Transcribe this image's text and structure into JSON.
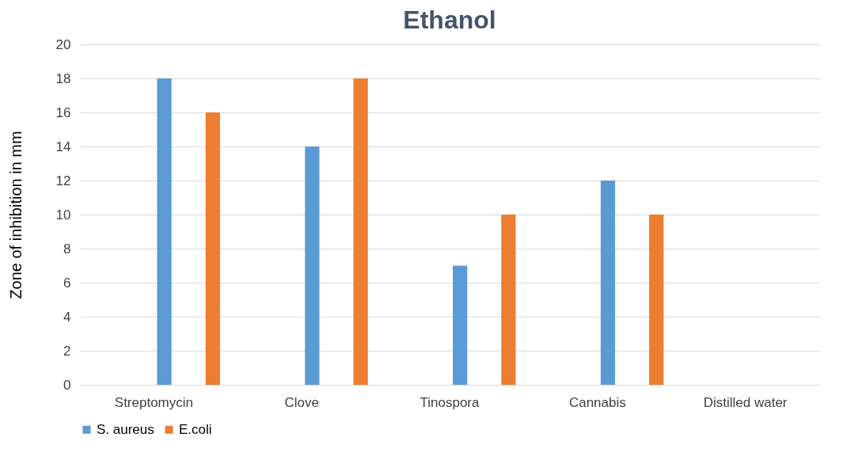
{
  "chart_data": {
    "type": "bar",
    "title": "Ethanol",
    "ylabel": "Zone of inhibition in mm",
    "categories": [
      "Streptomycin",
      "Clove",
      "Tinospora",
      "Cannabis",
      "Distilled water"
    ],
    "series": [
      {
        "name": "S. aureus",
        "color": "#5b9bd5",
        "values": [
          18,
          14,
          7,
          12,
          0
        ]
      },
      {
        "name": "E.coli",
        "color": "#ed7d31",
        "values": [
          16,
          18,
          10,
          10,
          0
        ]
      }
    ],
    "ylim": [
      0,
      20
    ],
    "yticks": [
      0,
      2,
      4,
      6,
      8,
      10,
      12,
      14,
      16,
      18,
      20
    ],
    "grid": "y",
    "legend": "bottom"
  }
}
